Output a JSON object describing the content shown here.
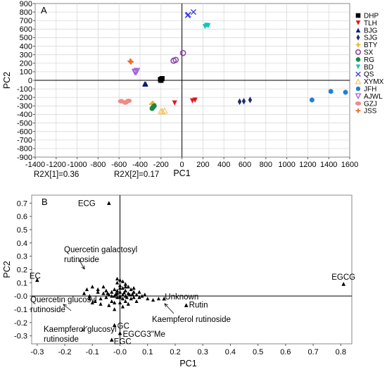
{
  "chart_data": [
    {
      "panel": "A",
      "type": "scatter",
      "xlabel": "PC1",
      "ylabel": "PC2",
      "xlim": [
        -1400,
        1600
      ],
      "ylim": [
        -900,
        900
      ],
      "xticks": [
        -1400,
        -1200,
        -1000,
        -800,
        -600,
        -400,
        -200,
        0,
        200,
        400,
        600,
        800,
        1000,
        1200,
        1400,
        1600
      ],
      "yticks": [
        900,
        800,
        700,
        600,
        500,
        400,
        300,
        200,
        100,
        0,
        -100,
        -200,
        -300,
        -400,
        -500,
        -600,
        -700,
        -800,
        -900
      ],
      "notes": [
        "R2X[1]=0.36",
        "R2X[2]=0.17"
      ],
      "legend_position": "right",
      "series": [
        {
          "name": "DHP",
          "color": "#000000",
          "marker": "square",
          "points": [
            [
              -190,
              20
            ],
            [
              -200,
              0
            ],
            [
              -205,
              10
            ]
          ]
        },
        {
          "name": "TLH",
          "color": "#e8141c",
          "marker": "triangle-down",
          "points": [
            [
              -70,
              -265
            ],
            [
              100,
              -240
            ],
            [
              125,
              -232
            ]
          ]
        },
        {
          "name": "BJG",
          "color": "#101c6e",
          "marker": "triangle-up",
          "points": [
            [
              -350,
              -45
            ],
            [
              -355,
              -40
            ],
            [
              -345,
              -42
            ]
          ]
        },
        {
          "name": "SJG",
          "color": "#1e2f6b",
          "marker": "diamond",
          "points": [
            [
              550,
              -250
            ],
            [
              590,
              -245
            ],
            [
              650,
              -230
            ]
          ]
        },
        {
          "name": "BTY",
          "color": "#f2b21a",
          "marker": "plus",
          "points": [
            [
              -290,
              -280
            ],
            [
              -280,
              -270
            ],
            [
              -270,
              -275
            ]
          ]
        },
        {
          "name": "SX",
          "color": "#8a3aa8",
          "marker": "circle-open",
          "points": [
            [
              -80,
              230
            ],
            [
              -60,
              240
            ],
            [
              10,
              320
            ]
          ]
        },
        {
          "name": "RG",
          "color": "#178a45",
          "marker": "circle",
          "points": [
            [
              -285,
              -330
            ],
            [
              -275,
              -315
            ],
            [
              -265,
              -300
            ]
          ]
        },
        {
          "name": "BD",
          "color": "#19c4b8",
          "marker": "triangle-down",
          "points": [
            [
              220,
              630
            ],
            [
              235,
              645
            ],
            [
              250,
              640
            ]
          ]
        },
        {
          "name": "QS",
          "color": "#3a3ad8",
          "marker": "x",
          "points": [
            [
              60,
              770
            ],
            [
              110,
              800
            ],
            [
              55,
              760
            ]
          ]
        },
        {
          "name": "XYMX",
          "color": "#f3c86a",
          "marker": "triangle-up-open",
          "points": [
            [
              -200,
              -360
            ],
            [
              -165,
              -355
            ],
            [
              -185,
              -365
            ]
          ]
        },
        {
          "name": "JFH",
          "color": "#1f7fd6",
          "marker": "hexagon",
          "points": [
            [
              1240,
              -230
            ],
            [
              1420,
              -130
            ],
            [
              1560,
              -140
            ]
          ]
        },
        {
          "name": "AJWL",
          "color": "#a35bd9",
          "marker": "triangle-down-open",
          "points": [
            [
              -450,
              100
            ],
            [
              -430,
              110
            ],
            [
              -440,
              95
            ]
          ]
        },
        {
          "name": "GZJ",
          "color": "#f08a8a",
          "marker": "ellipse",
          "points": [
            [
              -580,
              -245
            ],
            [
              -540,
              -260
            ],
            [
              -510,
              -240
            ]
          ]
        },
        {
          "name": "JSS",
          "color": "#f26a2a",
          "marker": "plus",
          "points": [
            [
              -490,
              220
            ],
            [
              -495,
              225
            ],
            [
              -485,
              215
            ]
          ]
        }
      ]
    },
    {
      "panel": "B",
      "type": "scatter",
      "xlabel": "PC1",
      "ylabel": "PC2",
      "xlim": [
        -0.32,
        0.84
      ],
      "ylim": [
        -0.36,
        0.76
      ],
      "xticks": [
        -0.3,
        -0.2,
        -0.1,
        0.0,
        0.1,
        0.2,
        0.3,
        0.4,
        0.5,
        0.6,
        0.7,
        0.8
      ],
      "yticks": [
        0.7,
        0.6,
        0.5,
        0.4,
        0.3,
        0.2,
        0.1,
        0.0,
        -0.1,
        -0.2,
        -0.3
      ],
      "tick_labels_x": [
        "-0.3",
        "-0.2",
        "-0.1",
        "-0.0",
        "0.1",
        "0.2",
        "0.3",
        "0.4",
        "0.5",
        "0.6",
        "0.7",
        "0.8"
      ],
      "tick_labels_y": [
        "0.7",
        "0.6",
        "0.5",
        "0.4",
        "0.3",
        "0.2",
        "0.1",
        "-0.0",
        "-0.1",
        "-0.2",
        "-0.3"
      ],
      "marker": "triangle-up",
      "color": "#000000",
      "labeled_points": [
        {
          "label": "ECG",
          "x": -0.04,
          "y": 0.7
        },
        {
          "label": "EC",
          "x": -0.3,
          "y": 0.12
        },
        {
          "label": "EGCG",
          "x": 0.81,
          "y": 0.09
        },
        {
          "label": "Unknown",
          "x": 0.16,
          "y": -0.02
        },
        {
          "label": "Rutin",
          "x": 0.24,
          "y": -0.07
        },
        {
          "label": "GC",
          "x": -0.02,
          "y": -0.22
        },
        {
          "label": "EGCG3\"Me",
          "x": 0.0,
          "y": -0.28
        },
        {
          "label": "EGC",
          "x": -0.03,
          "y": -0.33
        }
      ],
      "annotations": [
        {
          "lines": [
            "Quercetin galactosyl",
            "rutinoside"
          ],
          "point": [
            -0.13,
            0.21
          ]
        },
        {
          "lines": [
            "Quercetin glucosyl",
            "rutinoside"
          ],
          "point": [
            -0.13,
            -0.14
          ]
        },
        {
          "lines": [
            "Kaempferol glucosyl",
            "rutinoside"
          ],
          "point": [
            -0.09,
            -0.2
          ]
        },
        {
          "lines": [
            "Kaempferol rutinoside"
          ],
          "point": [
            0.15,
            -0.08
          ]
        }
      ],
      "cluster_points": [
        [
          -0.01,
          0.02
        ],
        [
          0.0,
          0.03
        ],
        [
          0.01,
          0.01
        ],
        [
          -0.02,
          0.0
        ],
        [
          0.02,
          0.0
        ],
        [
          0.0,
          -0.01
        ],
        [
          0.01,
          -0.02
        ],
        [
          -0.01,
          -0.01
        ],
        [
          0.03,
          0.02
        ],
        [
          -0.03,
          0.03
        ],
        [
          0.02,
          0.04
        ],
        [
          -0.02,
          0.05
        ],
        [
          0.01,
          0.06
        ],
        [
          0.0,
          0.08
        ],
        [
          -0.01,
          0.1
        ],
        [
          0.02,
          0.09
        ],
        [
          0.03,
          0.07
        ],
        [
          0.04,
          0.05
        ],
        [
          0.05,
          0.03
        ],
        [
          0.06,
          0.01
        ],
        [
          0.05,
          -0.01
        ],
        [
          0.04,
          -0.02
        ],
        [
          0.07,
          -0.01
        ],
        [
          0.08,
          0.0
        ],
        [
          0.1,
          -0.02
        ],
        [
          0.12,
          -0.03
        ],
        [
          0.14,
          -0.02
        ],
        [
          -0.04,
          0.01
        ],
        [
          -0.05,
          -0.01
        ],
        [
          -0.06,
          0.02
        ],
        [
          -0.07,
          -0.02
        ],
        [
          -0.08,
          0.03
        ],
        [
          -0.09,
          -0.04
        ],
        [
          -0.1,
          -0.05
        ],
        [
          -0.11,
          0.0
        ],
        [
          -0.12,
          0.05
        ],
        [
          -0.1,
          0.07
        ],
        [
          -0.08,
          0.05
        ],
        [
          -0.06,
          0.07
        ],
        [
          -0.05,
          0.04
        ],
        [
          -0.03,
          -0.04
        ],
        [
          -0.02,
          -0.05
        ],
        [
          0.0,
          -0.05
        ],
        [
          0.02,
          -0.04
        ],
        [
          0.03,
          -0.06
        ],
        [
          -0.04,
          -0.07
        ],
        [
          -0.07,
          -0.06
        ],
        [
          0.01,
          -0.08
        ],
        [
          -0.02,
          -0.1
        ],
        [
          0.0,
          0.12
        ],
        [
          -0.01,
          0.13
        ],
        [
          0.01,
          0.11
        ],
        [
          0.05,
          0.06
        ],
        [
          0.07,
          0.03
        ],
        [
          -0.13,
          0.02
        ],
        [
          -0.11,
          -0.02
        ],
        [
          0.09,
          0.01
        ],
        [
          0.06,
          -0.04
        ],
        [
          -0.01,
          0.04
        ],
        [
          0.0,
          0.0
        ],
        [
          0.015,
          0.025
        ],
        [
          -0.015,
          0.015
        ],
        [
          0.025,
          -0.01
        ],
        [
          -0.03,
          0.0
        ],
        [
          0.035,
          0.01
        ],
        [
          0.045,
          0.015
        ],
        [
          -0.045,
          0.02
        ],
        [
          0.0,
          0.06
        ],
        [
          0.02,
          0.07
        ]
      ]
    }
  ]
}
